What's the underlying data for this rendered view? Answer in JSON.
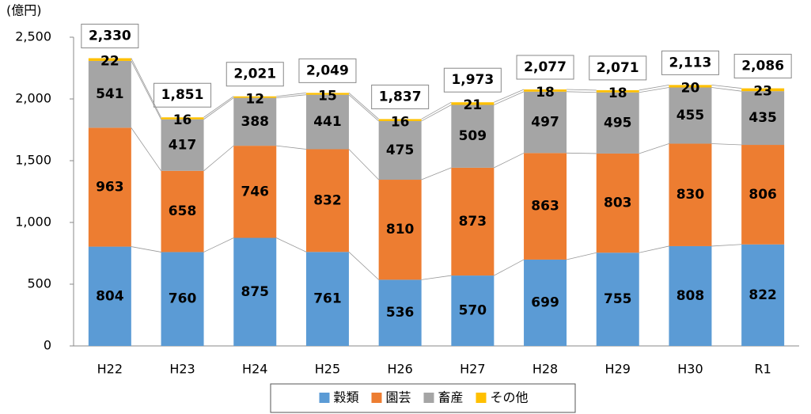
{
  "chart_data": {
    "type": "stacked_bar",
    "y_axis_label": "(億円)",
    "categories": [
      "H22",
      "H23",
      "H24",
      "H25",
      "H26",
      "H27",
      "H28",
      "H29",
      "H30",
      "R1"
    ],
    "series": [
      {
        "name": "穀類",
        "color": "#5b9bd5",
        "values": [
          804,
          760,
          875,
          761,
          536,
          570,
          699,
          755,
          808,
          822
        ]
      },
      {
        "name": "園芸",
        "color": "#ed7d31",
        "values": [
          963,
          658,
          746,
          832,
          810,
          873,
          863,
          803,
          830,
          806
        ]
      },
      {
        "name": "畜産",
        "color": "#a5a5a5",
        "values": [
          541,
          417,
          388,
          441,
          475,
          509,
          497,
          495,
          455,
          435
        ]
      },
      {
        "name": "その他",
        "color": "#ffc000",
        "values": [
          22,
          16,
          12,
          15,
          16,
          21,
          18,
          18,
          20,
          23
        ]
      }
    ],
    "totals": {
      "values": [
        2330,
        1851,
        2021,
        2049,
        1837,
        1973,
        2077,
        2071,
        2113,
        2086
      ],
      "value_labels": [
        "2,330",
        "1,851",
        "2,021",
        "2,049",
        "1,837",
        "1,973",
        "2,077",
        "2,071",
        "2,113",
        "2,086"
      ]
    },
    "ylim": [
      0,
      2500
    ],
    "yticks": [
      0,
      500,
      {
        "value": 1000,
        "label": "1,000"
      },
      {
        "value": 1500,
        "label": "1,500"
      },
      {
        "value": 2000,
        "label": "2,000"
      },
      {
        "value": 2500,
        "label": "2,500"
      }
    ],
    "legend": "bottom"
  }
}
